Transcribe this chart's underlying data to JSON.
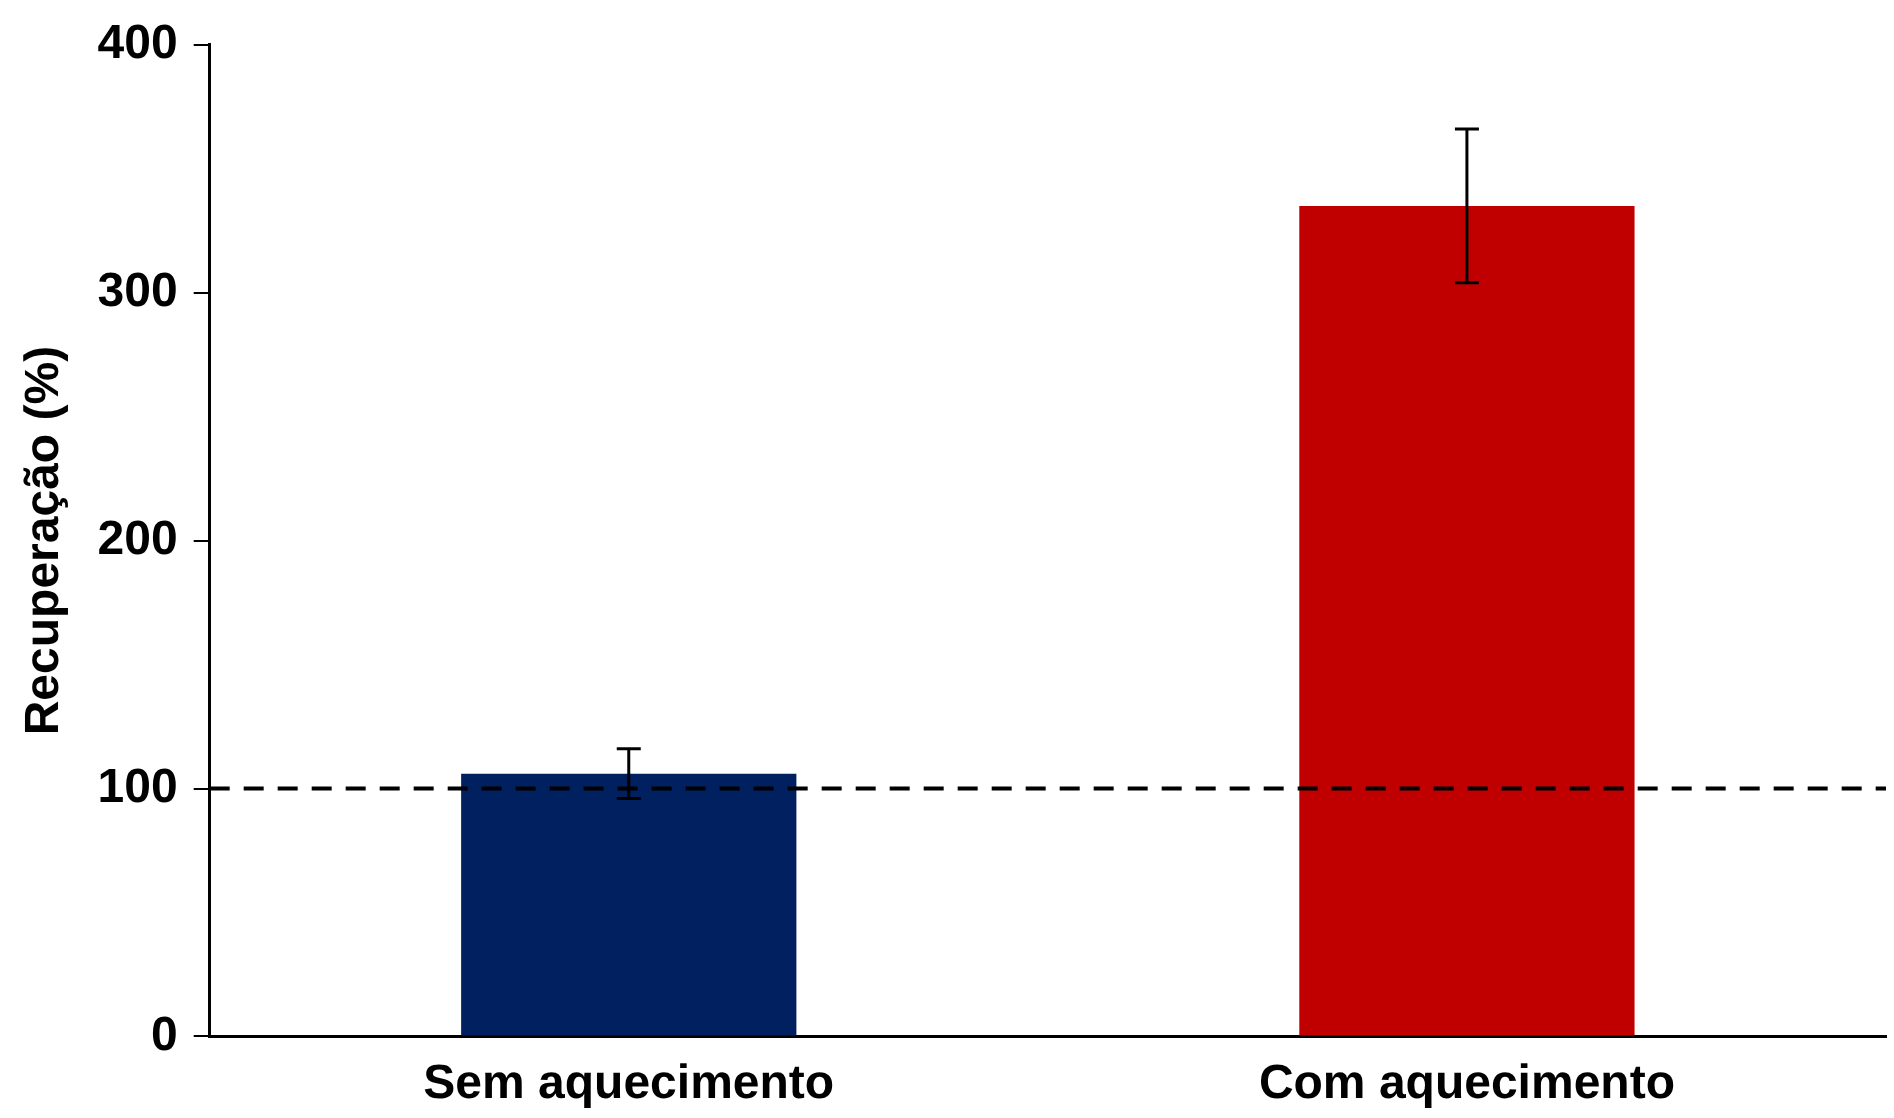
{
  "chart_data": {
    "type": "bar",
    "ylabel": "Recuperação (%)",
    "categories": [
      "Sem aquecimento",
      "Com aquecimento"
    ],
    "values": [
      106,
      335
    ],
    "colors": [
      "#002060",
      "#c00000"
    ],
    "errors": [
      10,
      31
    ],
    "ylim": [
      0,
      400
    ],
    "yticks": [
      0,
      100,
      200,
      300,
      400
    ],
    "ref_lines": [
      {
        "axis": "y",
        "value": 100,
        "line_style": "dashed",
        "color": "#000000"
      }
    ],
    "grid": false,
    "legend": false
  }
}
